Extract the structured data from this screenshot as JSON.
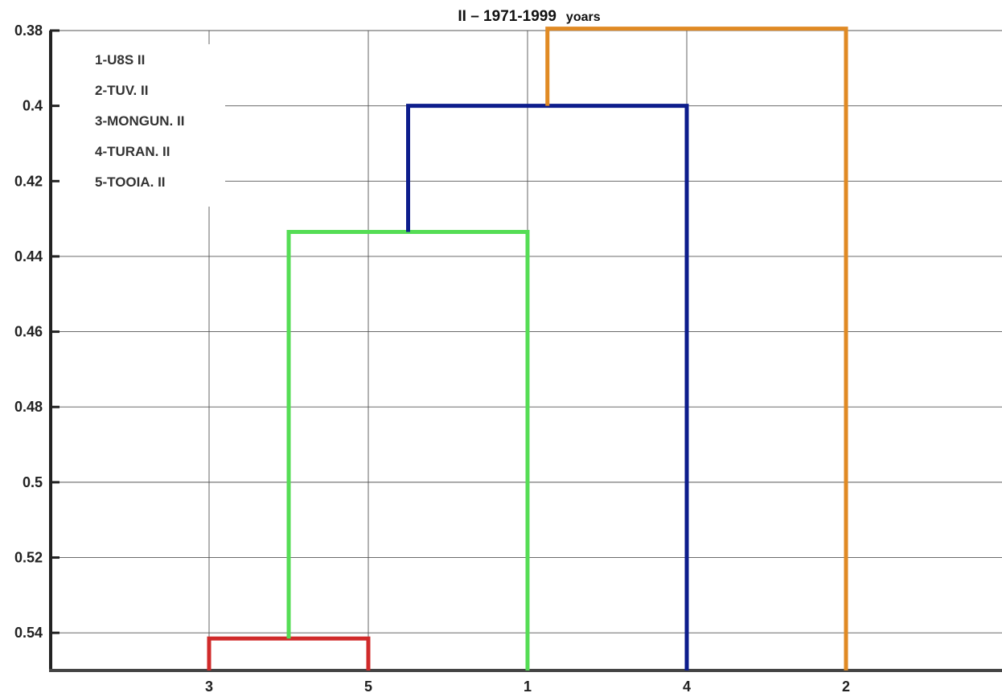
{
  "chart_data": {
    "type": "dendrogram",
    "title": "II – 1971-1999",
    "title_suffix": "yoars",
    "xlabel": "",
    "ylabel": "",
    "ylim": [
      0.38,
      0.55
    ],
    "y_inverted": true,
    "yticks": [
      0.38,
      0.4,
      0.42,
      0.44,
      0.46,
      0.48,
      0.5,
      0.52,
      0.54
    ],
    "leaf_order": [
      "3",
      "5",
      "1",
      "4",
      "2"
    ],
    "grid": true,
    "legend_position": "top-left",
    "legend": [
      "1-U8S II",
      "2-TUV. II",
      "3-MONGUN. II",
      "4-TURAN. II",
      "5-TOOIA. II"
    ],
    "merges": [
      {
        "left": "3",
        "right": "5",
        "height": 0.5415,
        "color": "#d02a2a"
      },
      {
        "left": "3+5",
        "right": "1",
        "height": 0.4335,
        "color": "#55dd55"
      },
      {
        "left": "3+5+1",
        "right": "4",
        "height": 0.4,
        "color": "#0d1d8c"
      },
      {
        "left": "3+5+1+4",
        "right": "2",
        "height": 0.3795,
        "color": "#e08a24"
      }
    ]
  }
}
